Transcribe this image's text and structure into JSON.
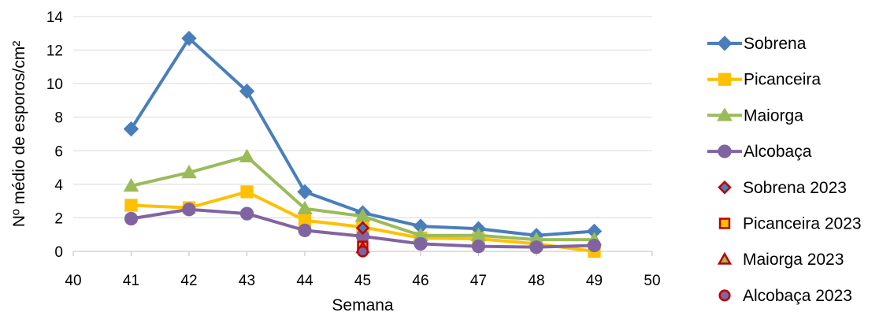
{
  "chart_data": {
    "type": "line",
    "xlabel": "Semana",
    "ylabel": "Nº médio de esporos/cm²",
    "xlim": [
      40,
      50
    ],
    "ylim": [
      0,
      14
    ],
    "xticks": [
      40,
      41,
      42,
      43,
      44,
      45,
      46,
      47,
      48,
      49,
      50
    ],
    "yticks": [
      0,
      2,
      4,
      6,
      8,
      10,
      12,
      14
    ],
    "grid": "horizontal",
    "legend_position": "right",
    "series": [
      {
        "name": "Sobrena",
        "color": "#4a7ebb",
        "marker": "diamond",
        "line": true,
        "x": [
          41,
          42,
          43,
          44,
          45,
          46,
          47,
          48,
          49
        ],
        "values": [
          7.3,
          12.7,
          9.55,
          3.55,
          2.3,
          1.5,
          1.35,
          0.95,
          1.2
        ]
      },
      {
        "name": "Picanceira",
        "color": "#ffc000",
        "marker": "square",
        "line": true,
        "x": [
          41,
          42,
          43,
          44,
          45,
          46,
          47,
          48,
          49
        ],
        "values": [
          2.75,
          2.6,
          3.55,
          1.85,
          1.45,
          0.8,
          0.75,
          0.45,
          0.0
        ]
      },
      {
        "name": "Maiorga",
        "color": "#9bbb59",
        "marker": "triangle",
        "line": true,
        "x": [
          41,
          42,
          43,
          44,
          45,
          46,
          47,
          48,
          49
        ],
        "values": [
          3.9,
          4.7,
          5.65,
          2.55,
          2.1,
          0.95,
          0.95,
          0.7,
          0.7
        ]
      },
      {
        "name": "Alcobaça",
        "color": "#8064a2",
        "marker": "circle",
        "line": true,
        "x": [
          41,
          42,
          43,
          44,
          45,
          46,
          47,
          48,
          49
        ],
        "values": [
          1.95,
          2.5,
          2.25,
          1.25,
          0.9,
          0.45,
          0.3,
          0.25,
          0.35
        ]
      },
      {
        "name": "Sobrena 2023",
        "color": "#4a7ebb",
        "edge": "#c00000",
        "marker": "diamond",
        "line": false,
        "x": [
          45
        ],
        "values": [
          1.4
        ]
      },
      {
        "name": "Picanceira 2023",
        "color": "#ffc000",
        "edge": "#c00000",
        "marker": "square",
        "line": false,
        "x": [
          45
        ],
        "values": [
          0.3
        ]
      },
      {
        "name": "Maiorga 2023",
        "color": "#9bbb59",
        "edge": "#c00000",
        "marker": "triangle",
        "line": false,
        "x": [
          45
        ],
        "values": [
          0.2
        ]
      },
      {
        "name": "Alcobaça 2023",
        "color": "#8064a2",
        "edge": "#c00000",
        "marker": "circle",
        "line": false,
        "x": [
          45
        ],
        "values": [
          0.0
        ]
      }
    ]
  }
}
